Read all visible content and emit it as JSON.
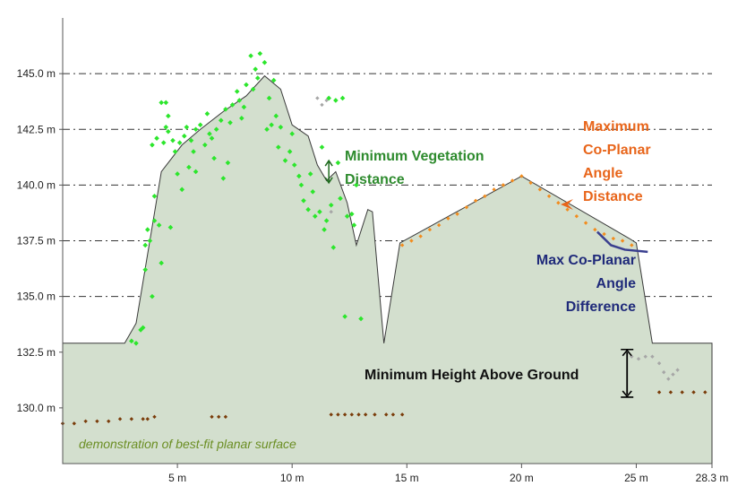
{
  "chart_data": {
    "type": "area",
    "title": "",
    "xlabel": "",
    "ylabel": "",
    "xlim": [
      0,
      28.3
    ],
    "ylim": [
      127.5,
      147.5
    ],
    "x_ticks": [
      5,
      10,
      15,
      20,
      25,
      28.3
    ],
    "x_tick_labels": [
      "5 m",
      "10 m",
      "15 m",
      "20 m",
      "25 m",
      "28.3 m"
    ],
    "y_ticks": [
      130.0,
      132.5,
      135.0,
      137.5,
      140.0,
      142.5,
      145.0
    ],
    "y_tick_labels": [
      "130.0 m",
      "132.5 m",
      "135.0 m",
      "137.5 m",
      "140.0 m",
      "142.5 m",
      "145.0 m"
    ],
    "grid": "horizontal dash-dot",
    "ground_level": 132.9,
    "profile": {
      "x": [
        0,
        2.7,
        3.2,
        4.3,
        5.2,
        6.0,
        7.0,
        8.0,
        8.8,
        9.5,
        10.0,
        10.7,
        11.1,
        11.5,
        11.9,
        12.4,
        12.8,
        13.3,
        13.5,
        14.0,
        14.7,
        20.0,
        24.7,
        25.0,
        25.7,
        28.3
      ],
      "y": [
        132.9,
        132.9,
        133.8,
        140.6,
        141.8,
        142.5,
        143.3,
        144.0,
        144.9,
        144.3,
        142.7,
        142.2,
        140.9,
        140.2,
        140.6,
        139.2,
        137.3,
        138.9,
        138.8,
        132.9,
        137.4,
        140.4,
        137.6,
        137.4,
        132.9,
        132.9
      ],
      "fill_color": "#d3dfce",
      "stroke_color": "#3a3a3a"
    },
    "series": [
      {
        "name": "",
        "role": "vegetation",
        "color": "#2ce62c",
        "x": [
          3.0,
          3.4,
          3.6,
          3.8,
          3.7,
          4.2,
          4.0,
          3.9,
          4.1,
          4.4,
          4.6,
          4.3,
          4.8,
          4.5,
          4.9,
          5.1,
          5.3,
          5.0,
          5.4,
          5.6,
          5.8,
          5.7,
          6.0,
          6.3,
          6.2,
          6.5,
          6.7,
          6.9,
          6.6,
          7.1,
          7.3,
          7.0,
          7.4,
          7.6,
          7.8,
          7.7,
          8.0,
          8.2,
          8.4,
          8.6,
          8.5,
          8.8,
          9.0,
          9.2,
          8.9,
          9.3,
          9.5,
          9.7,
          9.4,
          9.9,
          10.1,
          10.3,
          10.0,
          10.5,
          10.4,
          10.7,
          10.9,
          11.0,
          10.8,
          11.2,
          11.5,
          11.7,
          11.3,
          11.6,
          11.9,
          12.2,
          12.0,
          12.4,
          12.6,
          12.8,
          12.3,
          13.0,
          4.6,
          5.2,
          4.5,
          5.8,
          6.4,
          7.2,
          8.3,
          9.1,
          3.5,
          3.2,
          4.7,
          5.5,
          7.9,
          11.4,
          12.7,
          12.1,
          11.8,
          4.0,
          4.3,
          3.9,
          3.6
        ],
        "y": [
          133.0,
          133.5,
          136.2,
          137.5,
          138.0,
          138.2,
          139.5,
          141.8,
          142.1,
          141.9,
          142.4,
          143.7,
          142.0,
          142.6,
          141.5,
          141.9,
          142.2,
          140.5,
          142.6,
          142.0,
          142.5,
          141.5,
          142.7,
          143.2,
          141.8,
          142.1,
          142.5,
          142.9,
          141.2,
          143.4,
          142.8,
          140.3,
          143.6,
          144.2,
          143.0,
          143.8,
          144.5,
          145.8,
          145.2,
          145.9,
          144.8,
          145.5,
          143.9,
          144.7,
          142.5,
          143.1,
          142.6,
          141.1,
          141.7,
          141.5,
          140.9,
          140.4,
          142.3,
          139.3,
          140.0,
          138.9,
          139.7,
          138.6,
          140.5,
          138.8,
          138.4,
          139.1,
          141.7,
          143.9,
          143.8,
          143.9,
          141.0,
          138.6,
          138.7,
          140.0,
          134.1,
          134.0,
          143.1,
          139.8,
          143.7,
          140.6,
          142.3,
          141.0,
          144.3,
          142.7,
          133.6,
          132.9,
          138.1,
          140.8,
          143.5,
          138.0,
          138.2,
          139.4,
          137.2,
          138.4,
          136.5,
          135.0,
          137.3
        ]
      },
      {
        "name": "",
        "role": "co-planar surface",
        "color": "#f28c1e",
        "x": [
          14.8,
          15.2,
          15.6,
          16.0,
          16.4,
          16.8,
          17.2,
          17.6,
          18.0,
          18.4,
          18.8,
          19.2,
          19.6,
          20.0,
          20.4,
          20.8,
          21.2,
          21.6,
          22.0,
          22.4,
          22.8,
          23.2,
          23.6,
          24.0,
          24.4,
          24.8
        ],
        "y": [
          137.3,
          137.5,
          137.7,
          138.0,
          138.2,
          138.5,
          138.7,
          139.0,
          139.3,
          139.5,
          139.8,
          140.0,
          140.2,
          140.4,
          140.1,
          139.8,
          139.5,
          139.2,
          138.9,
          138.6,
          138.3,
          138.0,
          137.8,
          137.6,
          137.5,
          137.3
        ]
      },
      {
        "name": "",
        "role": "ground points",
        "color": "#7a3c0a",
        "x": [
          0.0,
          0.5,
          1.0,
          1.5,
          2.0,
          2.5,
          3.0,
          3.5,
          3.7,
          4.0,
          6.5,
          6.8,
          7.1,
          11.7,
          12.0,
          12.3,
          12.6,
          12.9,
          13.2,
          13.6,
          14.1,
          14.4,
          14.8,
          26.0,
          26.5,
          27.0,
          27.5,
          28.0
        ],
        "y": [
          129.3,
          129.3,
          129.4,
          129.4,
          129.4,
          129.5,
          129.5,
          129.5,
          129.5,
          129.6,
          129.6,
          129.6,
          129.6,
          129.7,
          129.7,
          129.7,
          129.7,
          129.7,
          129.7,
          129.7,
          129.7,
          129.7,
          129.7,
          130.7,
          130.7,
          130.7,
          130.7,
          130.7
        ]
      },
      {
        "name": "",
        "role": "unclassified",
        "color": "#a6a6a6",
        "x": [
          11.1,
          11.3,
          11.5,
          11.7,
          24.8,
          25.1,
          25.4,
          25.7,
          26.0,
          26.2,
          26.4,
          26.6,
          26.8
        ],
        "y": [
          143.9,
          143.6,
          143.8,
          138.8,
          132.3,
          132.2,
          132.3,
          132.3,
          132.0,
          131.6,
          131.3,
          131.5,
          131.7
        ]
      }
    ],
    "annotations": {
      "veg_distance_label": [
        "Minimum Vegetation",
        "Distance"
      ],
      "coplanar_distance_label": [
        "Maximum",
        "Co-Planar",
        "Angle",
        "Distance"
      ],
      "coplanar_diff_label": [
        "Max Co-Planar",
        "Angle",
        "Difference"
      ],
      "height_label": "Minimum Height Above Ground",
      "footer_label": "demonstration of best-fit planar surface",
      "veg_arrow": {
        "x": 11.6,
        "y_from": 140.1,
        "y_to": 141.1,
        "color": "#1e6b1e"
      },
      "height_arrow": {
        "x": 24.6,
        "y_from": 130.6,
        "y_to": 132.5,
        "color": "#000000"
      },
      "diff_line": {
        "x": [
          23.3,
          23.9,
          24.5,
          25.5
        ],
        "y": [
          137.9,
          137.3,
          137.1,
          137.0
        ],
        "color": "#3a3f8f"
      }
    }
  }
}
